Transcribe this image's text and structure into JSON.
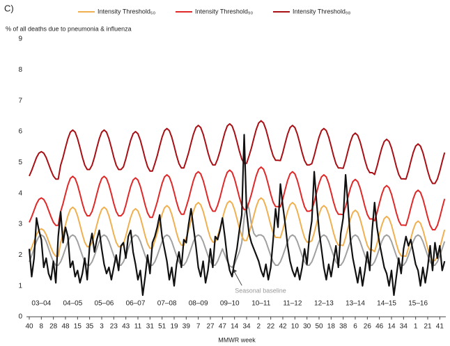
{
  "chart_data": {
    "type": "line",
    "panel_label": "C)",
    "y_label": "% of all deaths due to pneumonia & influenza",
    "x_label": "MMWR week",
    "xlim": [
      0,
      690
    ],
    "ylim": [
      0,
      9
    ],
    "yticks": [
      0,
      1,
      2,
      3,
      4,
      5,
      6,
      7,
      8,
      9
    ],
    "xticks": [
      {
        "value": 0,
        "label": "40"
      },
      {
        "value": 20,
        "label": "8"
      },
      {
        "value": 40,
        "label": "28"
      },
      {
        "value": 60,
        "label": "48"
      },
      {
        "value": 80,
        "label": "15"
      },
      {
        "value": 100,
        "label": "35"
      },
      {
        "value": 120,
        "label": "3"
      },
      {
        "value": 140,
        "label": "23"
      },
      {
        "value": 160,
        "label": "43"
      },
      {
        "value": 180,
        "label": "11"
      },
      {
        "value": 200,
        "label": "31"
      },
      {
        "value": 220,
        "label": "51"
      },
      {
        "value": 240,
        "label": "19"
      },
      {
        "value": 260,
        "label": "39"
      },
      {
        "value": 280,
        "label": "7"
      },
      {
        "value": 300,
        "label": "27"
      },
      {
        "value": 320,
        "label": "47"
      },
      {
        "value": 340,
        "label": "14"
      },
      {
        "value": 360,
        "label": "34"
      },
      {
        "value": 380,
        "label": "2"
      },
      {
        "value": 400,
        "label": "22"
      },
      {
        "value": 420,
        "label": "42"
      },
      {
        "value": 440,
        "label": "10"
      },
      {
        "value": 460,
        "label": "30"
      },
      {
        "value": 480,
        "label": "50"
      },
      {
        "value": 500,
        "label": "18"
      },
      {
        "value": 520,
        "label": "38"
      },
      {
        "value": 540,
        "label": "6"
      },
      {
        "value": 560,
        "label": "26"
      },
      {
        "value": 580,
        "label": "46"
      },
      {
        "value": 600,
        "label": "14"
      },
      {
        "value": 620,
        "label": "34"
      },
      {
        "value": 640,
        "label": "1"
      },
      {
        "value": 660,
        "label": "21"
      },
      {
        "value": 680,
        "label": "41"
      }
    ],
    "seasons": [
      "03–04",
      "04–05",
      "05–06",
      "06–07",
      "07–08",
      "08–09",
      "09–10",
      "10–11",
      "11–12",
      "12–13",
      "13–14",
      "14–15",
      "15–16"
    ],
    "x": [
      0,
      4,
      8,
      12,
      16,
      20,
      24,
      28,
      32,
      36,
      40,
      44,
      48,
      52,
      56,
      60,
      64,
      68,
      72,
      76,
      80,
      84,
      88,
      92,
      96,
      100,
      104,
      108,
      112,
      116,
      120,
      124,
      128,
      132,
      136,
      140,
      144,
      148,
      152,
      156,
      160,
      164,
      168,
      172,
      176,
      180,
      184,
      188,
      192,
      196,
      200,
      204,
      208,
      212,
      216,
      220,
      224,
      228,
      232,
      236,
      240,
      244,
      248,
      252,
      256,
      260,
      264,
      268,
      272,
      276,
      280,
      284,
      288,
      292,
      296,
      300,
      304,
      308,
      312,
      316,
      320,
      324,
      328,
      332,
      336,
      340,
      344,
      348,
      352,
      356,
      360,
      364,
      368,
      372,
      376,
      380,
      384,
      388,
      392,
      396,
      400,
      404,
      408,
      412,
      416,
      420,
      424,
      428,
      432,
      436,
      440,
      444,
      448,
      452,
      456,
      460,
      464,
      468,
      472,
      476,
      480,
      484,
      488,
      492,
      496,
      500,
      504,
      508,
      512,
      516,
      520,
      524,
      528,
      532,
      536,
      540,
      544,
      548,
      552,
      556,
      560,
      564,
      568,
      572,
      576,
      580,
      584,
      588,
      592,
      596,
      600,
      604,
      608,
      612,
      616,
      620,
      624,
      628,
      632,
      636,
      640,
      644,
      648,
      652,
      656,
      660,
      664,
      668,
      672,
      676,
      680,
      684,
      688
    ],
    "series": [
      {
        "name": "Intensity Threshold₅₀",
        "color": "#f0b050",
        "values": [
          2.06,
          2.24,
          2.45,
          2.66,
          2.8,
          2.85,
          2.8,
          2.66,
          2.45,
          2.24,
          2.06,
          1.96,
          1.96,
          2.41,
          2.67,
          2.98,
          3.27,
          3.48,
          3.55,
          3.48,
          3.27,
          2.98,
          2.67,
          2.41,
          2.27,
          2.27,
          2.41,
          2.67,
          2.98,
          3.27,
          3.48,
          3.55,
          3.48,
          3.27,
          2.98,
          2.67,
          2.41,
          2.27,
          2.27,
          2.36,
          2.62,
          2.93,
          3.22,
          3.43,
          3.5,
          3.43,
          3.22,
          2.93,
          2.62,
          2.36,
          2.22,
          2.22,
          2.46,
          2.72,
          3.03,
          3.32,
          3.53,
          3.6,
          3.53,
          3.32,
          3.03,
          2.72,
          2.46,
          2.32,
          2.32,
          2.56,
          2.82,
          3.13,
          3.42,
          3.63,
          3.7,
          3.63,
          3.42,
          3.13,
          2.82,
          2.56,
          2.42,
          2.42,
          2.61,
          2.87,
          3.18,
          3.47,
          3.68,
          3.75,
          3.68,
          3.47,
          3.18,
          2.87,
          2.61,
          2.47,
          2.47,
          2.71,
          2.97,
          3.28,
          3.57,
          3.78,
          3.85,
          3.78,
          3.57,
          3.28,
          2.97,
          2.71,
          2.57,
          2.57,
          2.56,
          2.82,
          3.13,
          3.42,
          3.63,
          3.7,
          3.63,
          3.42,
          3.13,
          2.82,
          2.56,
          2.42,
          2.42,
          2.46,
          2.72,
          3.03,
          3.32,
          3.53,
          3.6,
          3.53,
          3.32,
          3.03,
          2.72,
          2.46,
          2.32,
          2.32,
          2.31,
          2.57,
          2.88,
          3.17,
          3.38,
          3.45,
          3.38,
          3.17,
          2.88,
          2.57,
          2.31,
          2.17,
          2.17,
          2.11,
          2.37,
          2.68,
          2.97,
          3.18,
          3.25,
          3.18,
          2.97,
          2.68,
          2.37,
          2.11,
          1.97,
          1.97,
          1.96,
          2.22,
          2.53,
          2.82,
          3.03,
          3.1,
          3.03,
          2.82,
          2.53,
          2.22,
          1.96,
          1.82,
          1.82,
          1.96,
          2.22,
          2.53,
          2.82
        ]
      },
      {
        "name": "Intensity Threshold₉₀",
        "color": "#e02828",
        "values": [
          3.06,
          3.24,
          3.45,
          3.66,
          3.8,
          3.85,
          3.8,
          3.66,
          3.45,
          3.24,
          3.06,
          2.96,
          2.96,
          3.41,
          3.67,
          3.98,
          4.27,
          4.48,
          4.55,
          4.48,
          4.27,
          3.98,
          3.67,
          3.41,
          3.27,
          3.27,
          3.41,
          3.67,
          3.98,
          4.27,
          4.48,
          4.55,
          4.48,
          4.27,
          3.98,
          3.67,
          3.41,
          3.27,
          3.27,
          3.36,
          3.62,
          3.93,
          4.22,
          4.43,
          4.5,
          4.43,
          4.22,
          3.93,
          3.62,
          3.36,
          3.22,
          3.22,
          3.46,
          3.72,
          4.03,
          4.32,
          4.53,
          4.6,
          4.53,
          4.32,
          4.03,
          3.72,
          3.46,
          3.32,
          3.32,
          3.56,
          3.82,
          4.13,
          4.42,
          4.63,
          4.7,
          4.63,
          4.42,
          4.13,
          3.82,
          3.56,
          3.42,
          3.42,
          3.61,
          3.87,
          4.18,
          4.47,
          4.68,
          4.75,
          4.68,
          4.47,
          4.18,
          3.87,
          3.61,
          3.47,
          3.47,
          3.71,
          3.97,
          4.28,
          4.57,
          4.78,
          4.85,
          4.78,
          4.57,
          4.28,
          3.97,
          3.71,
          3.57,
          3.57,
          3.56,
          3.82,
          4.13,
          4.42,
          4.63,
          4.7,
          4.63,
          4.42,
          4.13,
          3.82,
          3.56,
          3.42,
          3.42,
          3.46,
          3.72,
          4.03,
          4.32,
          4.53,
          4.6,
          4.53,
          4.32,
          4.03,
          3.72,
          3.46,
          3.32,
          3.32,
          3.31,
          3.57,
          3.88,
          4.17,
          4.38,
          4.45,
          4.38,
          4.17,
          3.88,
          3.57,
          3.31,
          3.17,
          3.17,
          3.11,
          3.37,
          3.68,
          3.97,
          4.18,
          4.25,
          4.18,
          3.97,
          3.68,
          3.37,
          3.11,
          2.97,
          2.97,
          2.96,
          3.22,
          3.53,
          3.82,
          4.03,
          4.1,
          4.03,
          3.82,
          3.53,
          3.22,
          2.96,
          2.82,
          2.82,
          2.96,
          3.22,
          3.53,
          3.82
        ]
      },
      {
        "name": "Intensity Threshold₉₈",
        "color": "#a80f14",
        "values": [
          4.56,
          4.74,
          4.95,
          5.16,
          5.3,
          5.35,
          5.3,
          5.16,
          4.95,
          4.74,
          4.56,
          4.46,
          4.46,
          4.91,
          5.17,
          5.48,
          5.77,
          5.98,
          6.05,
          5.98,
          5.77,
          5.48,
          5.17,
          4.91,
          4.77,
          4.77,
          4.91,
          5.17,
          5.48,
          5.77,
          5.98,
          6.05,
          5.98,
          5.77,
          5.48,
          5.17,
          4.91,
          4.77,
          4.77,
          4.86,
          5.12,
          5.43,
          5.72,
          5.93,
          6.0,
          5.93,
          5.72,
          5.43,
          5.12,
          4.86,
          4.72,
          4.72,
          4.96,
          5.22,
          5.53,
          5.82,
          6.03,
          6.1,
          6.03,
          5.82,
          5.53,
          5.22,
          4.96,
          4.82,
          4.82,
          5.06,
          5.32,
          5.63,
          5.92,
          6.13,
          6.2,
          6.13,
          5.92,
          5.63,
          5.32,
          5.06,
          4.92,
          4.92,
          5.11,
          5.37,
          5.68,
          5.97,
          6.18,
          6.25,
          6.18,
          5.97,
          5.68,
          5.37,
          5.11,
          4.97,
          4.97,
          5.21,
          5.47,
          5.78,
          6.07,
          6.28,
          6.35,
          6.28,
          6.07,
          5.78,
          5.47,
          5.21,
          5.07,
          5.07,
          5.06,
          5.32,
          5.63,
          5.92,
          6.13,
          6.2,
          6.13,
          5.92,
          5.63,
          5.32,
          5.06,
          4.92,
          4.92,
          4.96,
          5.22,
          5.53,
          5.82,
          6.03,
          6.1,
          6.03,
          5.82,
          5.53,
          5.22,
          4.96,
          4.82,
          4.82,
          4.81,
          5.07,
          5.38,
          5.67,
          5.88,
          5.95,
          5.88,
          5.67,
          5.38,
          5.07,
          4.81,
          4.67,
          4.67,
          4.61,
          4.87,
          5.18,
          5.47,
          5.68,
          5.75,
          5.68,
          5.47,
          5.18,
          4.87,
          4.61,
          4.47,
          4.47,
          4.46,
          4.72,
          5.03,
          5.32,
          5.53,
          5.6,
          5.53,
          5.32,
          5.03,
          4.72,
          4.46,
          4.32,
          4.32,
          4.46,
          4.72,
          5.03,
          5.32
        ]
      },
      {
        "label": "Seasonal baseline",
        "color": "#a0a0a0",
        "label_at": 84,
        "values": [
          1.78,
          1.98,
          2.21,
          2.44,
          2.6,
          2.65,
          2.6,
          2.44,
          2.21,
          1.98,
          1.78,
          1.67,
          1.67,
          1.78,
          1.98,
          2.21,
          2.44,
          2.6,
          2.65,
          2.6,
          2.44,
          2.21,
          1.98,
          1.78,
          1.67,
          1.67,
          1.78,
          1.98,
          2.21,
          2.44,
          2.6,
          2.65,
          2.6,
          2.44,
          2.21,
          1.98,
          1.78,
          1.67,
          1.67,
          1.78,
          1.98,
          2.21,
          2.44,
          2.6,
          2.65,
          2.6,
          2.44,
          2.21,
          1.98,
          1.78,
          1.67,
          1.67,
          1.78,
          1.98,
          2.21,
          2.44,
          2.6,
          2.65,
          2.6,
          2.44,
          2.21,
          1.98,
          1.78,
          1.67,
          1.67,
          1.78,
          1.98,
          2.21,
          2.44,
          2.6,
          2.65,
          2.6,
          2.44,
          2.21,
          1.98,
          1.78,
          1.67,
          1.67,
          1.8,
          2.0,
          2.2,
          2.0,
          1.8,
          1.65,
          1.6,
          1.7,
          1.9,
          2.1,
          2.4,
          3.2,
          3.7,
          3.5,
          3.0,
          2.7,
          2.6,
          2.65,
          2.65,
          2.6,
          2.44,
          2.21,
          1.98,
          1.78,
          1.67,
          1.67,
          1.78,
          1.98,
          2.21,
          2.44,
          2.6,
          2.65,
          2.6,
          2.44,
          2.21,
          1.98,
          1.78,
          1.67,
          1.67,
          1.78,
          1.98,
          2.21,
          2.44,
          2.6,
          2.65,
          2.6,
          2.44,
          2.21,
          1.98,
          1.78,
          1.67,
          1.67,
          1.78,
          1.98,
          2.21,
          2.44,
          2.6,
          2.65,
          2.6,
          2.44,
          2.21,
          1.98,
          1.78,
          1.67,
          1.67,
          1.78,
          1.98,
          2.21,
          2.44,
          2.6,
          2.65,
          2.6,
          2.44,
          2.21,
          1.98,
          1.78,
          1.67,
          1.67,
          1.78,
          1.98,
          2.21,
          2.44,
          2.6,
          2.65,
          2.6,
          2.44,
          2.21,
          1.98,
          1.78,
          1.67,
          1.67,
          1.78,
          1.98,
          2.21,
          2.44
        ]
      },
      {
        "color": "#111111",
        "values": [
          2.2,
          1.3,
          1.9,
          3.2,
          2.8,
          2.5,
          1.6,
          1.9,
          1.4,
          1.2,
          1.8,
          1.1,
          2.6,
          3.4,
          2.4,
          2.9,
          2.6,
          1.6,
          1.8,
          1.3,
          1.5,
          1.1,
          1.4,
          1.9,
          1.2,
          2.3,
          2.7,
          2.1,
          2.5,
          2.8,
          2.2,
          1.7,
          1.4,
          1.6,
          1.2,
          1.6,
          2.0,
          1.5,
          2.3,
          2.4,
          1.9,
          2.6,
          2.8,
          2.1,
          1.7,
          1.2,
          1.5,
          0.7,
          1.3,
          2.0,
          1.4,
          2.4,
          2.6,
          2.9,
          3.3,
          2.6,
          2.2,
          1.8,
          1.2,
          1.6,
          1.0,
          1.7,
          2.1,
          1.6,
          2.5,
          2.4,
          3.0,
          3.5,
          2.9,
          2.3,
          1.6,
          1.3,
          1.8,
          1.1,
          1.5,
          2.2,
          1.6,
          2.6,
          2.5,
          2.8,
          3.2,
          2.6,
          1.9,
          1.5,
          1.3,
          1.8,
          2.2,
          2.8,
          3.3,
          5.9,
          3.4,
          2.7,
          2.4,
          2.2,
          2.0,
          1.8,
          1.5,
          1.3,
          1.7,
          1.2,
          1.6,
          2.5,
          3.5,
          2.9,
          4.3,
          3.6,
          3.0,
          2.3,
          1.8,
          1.5,
          1.3,
          1.6,
          1.2,
          1.6,
          2.2,
          1.7,
          2.6,
          3.1,
          4.7,
          3.7,
          2.8,
          2.2,
          1.6,
          1.2,
          1.7,
          1.3,
          1.8,
          2.3,
          1.6,
          2.7,
          3.2,
          4.6,
          3.6,
          2.5,
          1.9,
          1.5,
          1.1,
          1.6,
          1.0,
          1.5,
          2.1,
          1.5,
          2.8,
          3.7,
          2.9,
          2.4,
          2.0,
          1.6,
          1.4,
          1.0,
          1.5,
          0.7,
          1.3,
          1.9,
          1.4,
          2.2,
          2.6,
          2.3,
          2.5,
          2.1,
          1.7,
          1.5,
          1.0,
          1.6,
          1.1,
          1.6,
          2.3,
          1.5,
          2.4,
          1.9,
          2.3,
          1.5,
          1.8
        ]
      }
    ]
  }
}
